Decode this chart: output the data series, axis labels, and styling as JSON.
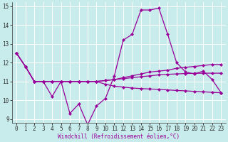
{
  "title": "",
  "xlabel": "Windchill (Refroidissement éolien,°C)",
  "ylabel": "",
  "bg_color": "#c8ecec",
  "grid_color": "#ffffff",
  "line_color": "#990099",
  "marker": "D",
  "markersize": 2.2,
  "linewidth": 0.9,
  "xlim": [
    -0.5,
    23.5
  ],
  "ylim": [
    8.8,
    15.2
  ],
  "xticks": [
    0,
    1,
    2,
    3,
    4,
    5,
    6,
    7,
    8,
    9,
    10,
    11,
    12,
    13,
    14,
    15,
    16,
    17,
    18,
    19,
    20,
    21,
    22,
    23
  ],
  "yticks": [
    9,
    10,
    11,
    12,
    13,
    14,
    15
  ],
  "tick_fontsize": 5.5,
  "xlabel_fontsize": 5.5,
  "series": [
    [
      12.5,
      11.8,
      11.0,
      11.0,
      10.2,
      11.0,
      9.3,
      9.8,
      8.7,
      9.7,
      10.1,
      11.3,
      13.2,
      13.5,
      14.8,
      14.8,
      14.9,
      13.5,
      12.0,
      11.5,
      11.4,
      11.55,
      11.1,
      10.4
    ],
    [
      12.5,
      11.8,
      11.0,
      11.0,
      11.0,
      11.0,
      11.0,
      11.0,
      11.0,
      11.0,
      11.05,
      11.1,
      11.2,
      11.3,
      11.4,
      11.5,
      11.55,
      11.6,
      11.7,
      11.75,
      11.8,
      11.85,
      11.9,
      11.9
    ],
    [
      12.5,
      11.8,
      11.0,
      11.0,
      11.0,
      11.0,
      11.0,
      11.0,
      11.0,
      11.0,
      11.05,
      11.1,
      11.15,
      11.2,
      11.25,
      11.3,
      11.35,
      11.38,
      11.4,
      11.42,
      11.43,
      11.44,
      11.44,
      11.44
    ],
    [
      12.5,
      11.8,
      11.0,
      11.0,
      11.0,
      11.0,
      11.0,
      11.0,
      11.0,
      11.0,
      10.85,
      10.75,
      10.7,
      10.65,
      10.62,
      10.6,
      10.58,
      10.55,
      10.52,
      10.5,
      10.47,
      10.45,
      10.42,
      10.4
    ]
  ]
}
